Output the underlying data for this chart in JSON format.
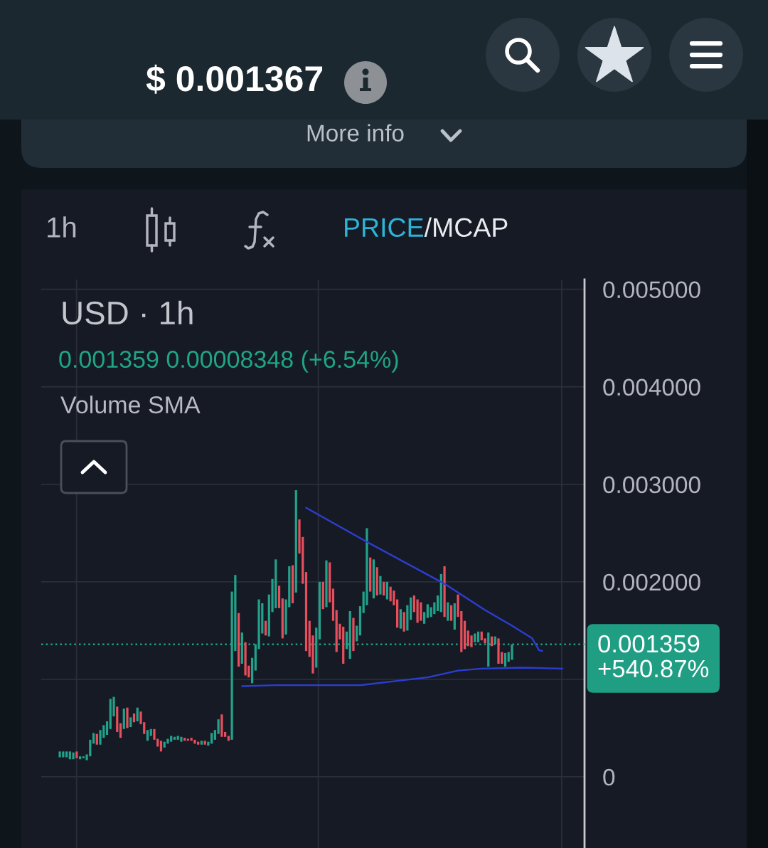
{
  "chart_data": {
    "type": "candlestick",
    "title": "USD · 1h",
    "annotations": [
      "$ 0.001367",
      "More info",
      "1h",
      "PRICE",
      "/MCAP",
      "0.001359 0.00008348 (+6.54%)",
      "Volume SMA"
    ],
    "categories": [
      null,
      null,
      null,
      null,
      null,
      null,
      null,
      null,
      null,
      null,
      null,
      null,
      null,
      null,
      null,
      null,
      null,
      null,
      null,
      null,
      null,
      null,
      null,
      null,
      null,
      null,
      null,
      null,
      null,
      null,
      null,
      null,
      null,
      null,
      null,
      null,
      null,
      null,
      null,
      null,
      null,
      null,
      null,
      null,
      null,
      null,
      null,
      null,
      null,
      null,
      null,
      null,
      null,
      null,
      null,
      null,
      null,
      null,
      null,
      null,
      null,
      null,
      null,
      null,
      null,
      null,
      null,
      null,
      null,
      null,
      null,
      null,
      null,
      null,
      null,
      null,
      null,
      null,
      null,
      null,
      null,
      null,
      null,
      null,
      null,
      null,
      null,
      null,
      null,
      null,
      null,
      null,
      null,
      null,
      null,
      null,
      null,
      null,
      null,
      null,
      null,
      null,
      null,
      null,
      null,
      null,
      null,
      null,
      null,
      null,
      null,
      null,
      null,
      null,
      null,
      null,
      null,
      null,
      null,
      null,
      null,
      null,
      null,
      null,
      null,
      null,
      null,
      null,
      null,
      null,
      null,
      null,
      null,
      null,
      null,
      null,
      null,
      null,
      null,
      null,
      null,
      null,
      null,
      null,
      null,
      null,
      null,
      null,
      null,
      null,
      null,
      null,
      null,
      null,
      null,
      null,
      null,
      null,
      null,
      null,
      null
    ],
    "ohlc": [
      null,
      null,
      null,
      null,
      null,
      [
        0.0002,
        0.00026,
        0.0002,
        0.00026
      ],
      [
        0.0002,
        0.00026,
        0.0002,
        0.00026
      ],
      [
        0.0002,
        0.00026,
        0.0002,
        0.00026
      ],
      [
        0.00018,
        0.00026,
        0.00018,
        0.00026
      ],
      [
        0.00018,
        0.00025,
        0.00018,
        0.00025
      ],
      [
        0.00026,
        0.00026,
        0.00019,
        0.00019
      ],
      [
        0.00018,
        0.00021,
        0.00018,
        0.00021
      ],
      [
        0.00019,
        0.00021,
        0.00019,
        0.00021
      ],
      [
        0.00017,
        0.00023,
        0.00017,
        0.00023
      ],
      [
        0.00021,
        0.00038,
        0.00021,
        0.00038
      ],
      [
        0.00034,
        0.00045,
        0.00034,
        0.00045
      ],
      [
        0.00044,
        0.00044,
        0.00033,
        0.00033
      ],
      [
        0.00033,
        0.00048,
        0.00033,
        0.00048
      ],
      [
        0.0004,
        0.00053,
        0.0004,
        0.00053
      ],
      [
        0.00043,
        0.00057,
        0.00043,
        0.00057
      ],
      [
        0.00049,
        0.0008,
        0.00049,
        0.0008
      ],
      [
        0.00062,
        0.00082,
        0.00062,
        0.00082
      ],
      [
        0.00072,
        0.00072,
        0.00046,
        0.00046
      ],
      [
        0.00055,
        0.00055,
        0.0004,
        0.0004
      ],
      [
        0.00049,
        0.0007,
        0.00049,
        0.0007
      ],
      [
        0.00071,
        0.00071,
        0.0005,
        0.0005
      ],
      [
        0.00051,
        0.00061,
        0.00051,
        0.00061
      ],
      [
        0.00065,
        0.00065,
        0.00056,
        0.00056
      ],
      [
        0.00057,
        0.00071,
        0.00057,
        0.00071
      ],
      [
        0.00067,
        0.00067,
        0.00054,
        0.00054
      ],
      [
        0.00056,
        0.00056,
        0.00044,
        0.00044
      ],
      [
        0.00037,
        0.00048,
        0.00037,
        0.00048
      ],
      [
        0.00042,
        0.00049,
        0.00042,
        0.00049
      ],
      [
        0.00049,
        0.00049,
        0.00038,
        0.00038
      ],
      [
        0.00039,
        0.00039,
        0.00031,
        0.00031
      ],
      [
        0.00037,
        0.00037,
        0.00026,
        0.00026
      ],
      [
        0.0003,
        0.00036,
        0.0003,
        0.00036
      ],
      [
        0.00034,
        0.00039,
        0.00034,
        0.00039
      ],
      [
        0.00036,
        0.00042,
        0.00036,
        0.00042
      ],
      [
        0.00038,
        0.00041,
        0.00038,
        0.00041
      ],
      [
        0.00038,
        0.00042,
        0.00038,
        0.00042
      ],
      [
        0.00036,
        0.00041,
        0.00036,
        0.00041
      ],
      [
        0.0004,
        0.0004,
        0.00037,
        0.00037
      ],
      [
        0.00039,
        0.00039,
        0.00037,
        0.00037
      ],
      [
        0.0004,
        0.0004,
        0.00037,
        0.00037
      ],
      [
        0.00038,
        0.00038,
        0.00034,
        0.00034
      ],
      [
        0.00036,
        0.00036,
        0.00033,
        0.00033
      ],
      [
        0.00033,
        0.00037,
        0.00033,
        0.00037
      ],
      [
        0.00037,
        0.00037,
        0.00033,
        0.00033
      ],
      [
        0.00032,
        0.00036,
        0.00032,
        0.00036
      ],
      [
        0.00034,
        0.00045,
        0.00034,
        0.00045
      ],
      [
        0.00038,
        0.00048,
        0.00038,
        0.00048
      ],
      [
        0.00044,
        0.00059,
        0.00044,
        0.00059
      ],
      [
        0.00064,
        0.00064,
        0.00041,
        0.00041
      ],
      [
        0.00046,
        0.00046,
        0.00041,
        0.00041
      ],
      [
        0.00042,
        0.00042,
        0.00037,
        0.00037
      ],
      [
        0.00038,
        0.0019,
        0.00038,
        0.0019
      ],
      [
        0.00129,
        0.00207,
        0.00129,
        0.00207
      ],
      [
        0.00168,
        0.00168,
        0.00113,
        0.00113
      ],
      [
        0.00116,
        0.00148,
        0.00116,
        0.00148
      ],
      [
        0.00138,
        0.00138,
        0.00104,
        0.00104
      ],
      [
        0.00114,
        0.00114,
        0.00102,
        0.00102
      ],
      [
        0.00096,
        0.00122,
        0.00096,
        0.00122
      ],
      [
        0.00109,
        0.00136,
        0.00109,
        0.00136
      ],
      [
        0.00131,
        0.00182,
        0.00131,
        0.00182
      ],
      [
        0.00147,
        0.00178,
        0.00147,
        0.00178
      ],
      [
        0.0016,
        0.0016,
        0.00145,
        0.00145
      ],
      [
        0.00144,
        0.00187,
        0.00144,
        0.00187
      ],
      [
        0.00169,
        0.00203,
        0.00169,
        0.00203
      ],
      [
        0.00173,
        0.00223,
        0.00173,
        0.00223
      ],
      [
        0.00196,
        0.00196,
        0.00173,
        0.00173
      ],
      [
        0.00183,
        0.00183,
        0.00142,
        0.00142
      ],
      [
        0.00146,
        0.00182,
        0.00146,
        0.00182
      ],
      [
        0.00174,
        0.00216,
        0.00174,
        0.00216
      ],
      [
        0.00217,
        0.00217,
        0.00178,
        0.00178
      ],
      [
        0.00189,
        0.00294,
        0.00189,
        0.00294
      ],
      [
        0.00264,
        0.00264,
        0.00229,
        0.00229
      ],
      [
        0.00246,
        0.00246,
        0.00198,
        0.00198
      ],
      [
        0.0021,
        0.0021,
        0.00129,
        0.00129
      ],
      [
        0.0016,
        0.0016,
        0.00123,
        0.00123
      ],
      [
        0.00145,
        0.00145,
        0.00106,
        0.00106
      ],
      [
        0.00112,
        0.00153,
        0.00112,
        0.00153
      ],
      [
        0.00141,
        0.002,
        0.00141,
        0.002
      ],
      [
        0.002,
        0.002,
        0.00172,
        0.00172
      ],
      [
        0.00174,
        0.00222,
        0.00174,
        0.00222
      ],
      [
        0.0022,
        0.0022,
        0.00179,
        0.00179
      ],
      [
        0.00193,
        0.00193,
        0.0016,
        0.0016
      ],
      [
        0.00171,
        0.00171,
        0.00128,
        0.00128
      ],
      [
        0.00157,
        0.00157,
        0.00141,
        0.00141
      ],
      [
        0.00154,
        0.00154,
        0.00116,
        0.00116
      ],
      [
        0.00131,
        0.00149,
        0.00131,
        0.00149
      ],
      [
        0.00121,
        0.0017,
        0.00121,
        0.0017
      ],
      [
        0.00163,
        0.00163,
        0.00129,
        0.00129
      ],
      [
        0.00139,
        0.00155,
        0.00139,
        0.00155
      ],
      [
        0.00145,
        0.00175,
        0.00145,
        0.00175
      ],
      [
        0.00168,
        0.0019,
        0.00168,
        0.0019
      ],
      [
        0.00176,
        0.00255,
        0.00176,
        0.00255
      ],
      [
        0.00225,
        0.00225,
        0.0019,
        0.0019
      ],
      [
        0.00183,
        0.00223,
        0.00183,
        0.00223
      ],
      [
        0.00215,
        0.00215,
        0.00186,
        0.00186
      ],
      [
        0.00187,
        0.00206,
        0.00187,
        0.00206
      ],
      [
        0.002,
        0.002,
        0.00186,
        0.00186
      ],
      [
        0.00182,
        0.002,
        0.00182,
        0.002
      ],
      [
        0.00195,
        0.00195,
        0.0018,
        0.0018
      ],
      [
        0.00191,
        0.00191,
        0.00176,
        0.00176
      ],
      [
        0.00182,
        0.00182,
        0.00153,
        0.00153
      ],
      [
        0.00152,
        0.00172,
        0.00152,
        0.00172
      ],
      [
        0.00169,
        0.00169,
        0.00149,
        0.00149
      ],
      [
        0.0015,
        0.00176,
        0.0015,
        0.00176
      ],
      [
        0.00161,
        0.00184,
        0.00161,
        0.00184
      ],
      [
        0.00186,
        0.00186,
        0.00169,
        0.00169
      ],
      [
        0.00182,
        0.00182,
        0.00158,
        0.00158
      ],
      [
        0.00179,
        0.00179,
        0.0016,
        0.0016
      ],
      [
        0.00157,
        0.00169,
        0.00157,
        0.00169
      ],
      [
        0.00163,
        0.00177,
        0.00163,
        0.00177
      ],
      [
        0.00164,
        0.00174,
        0.00164,
        0.00174
      ],
      [
        0.00167,
        0.00179,
        0.00167,
        0.00179
      ],
      [
        0.0017,
        0.00186,
        0.0017,
        0.00186
      ],
      [
        0.00169,
        0.00208,
        0.00169,
        0.00208
      ],
      [
        0.00216,
        0.00216,
        0.00164,
        0.00164
      ],
      [
        0.0016,
        0.00179,
        0.0016,
        0.00179
      ],
      [
        0.00176,
        0.00176,
        0.0016,
        0.0016
      ],
      [
        0.00151,
        0.00178,
        0.00151,
        0.00178
      ],
      [
        0.00187,
        0.00187,
        0.00164,
        0.00164
      ],
      [
        0.0017,
        0.0017,
        0.00128,
        0.00128
      ],
      [
        0.0016,
        0.0016,
        0.00131,
        0.00131
      ],
      [
        0.0015,
        0.0015,
        0.00134,
        0.00134
      ],
      [
        0.00145,
        0.00145,
        0.00133,
        0.00133
      ],
      [
        0.00138,
        0.00147,
        0.00138,
        0.00147
      ],
      [
        0.00138,
        0.00149,
        0.00138,
        0.00149
      ],
      [
        0.00149,
        0.00149,
        0.0014,
        0.0014
      ],
      [
        0.00142,
        0.00142,
        0.00137,
        0.00137
      ],
      [
        0.00113,
        0.00148,
        0.00113,
        0.00148
      ],
      [
        0.00144,
        0.00144,
        0.00134,
        0.00134
      ],
      [
        0.00136,
        0.00144,
        0.00136,
        0.00144
      ],
      [
        0.00142,
        0.00142,
        0.00116,
        0.00116
      ],
      [
        0.00128,
        0.00128,
        0.00116,
        0.00116
      ],
      [
        0.00113,
        0.00127,
        0.00113,
        0.00127
      ],
      [
        0.00118,
        0.00128,
        0.00118,
        0.00128
      ],
      [
        0.0012,
        0.001359,
        0.0012,
        0.001359
      ],
      null,
      null,
      null,
      null,
      null,
      null,
      null,
      null,
      null,
      null,
      null,
      null,
      null,
      null,
      null,
      null,
      null,
      null,
      null,
      null,
      null
    ],
    "series": [
      {
        "type": "line",
        "color": "#2c3ed1",
        "values": [
          null,
          null,
          null,
          null,
          null,
          null,
          null,
          null,
          null,
          null,
          null,
          null,
          null,
          null,
          null,
          null,
          null,
          null,
          null,
          null,
          null,
          null,
          null,
          null,
          null,
          null,
          null,
          null,
          null,
          null,
          null,
          null,
          null,
          null,
          null,
          null,
          null,
          null,
          null,
          null,
          null,
          null,
          null,
          null,
          null,
          null,
          null,
          null,
          null,
          null,
          null,
          null,
          null,
          null,
          null,
          null,
          null,
          null,
          null,
          null,
          null,
          null,
          null,
          null,
          null,
          null,
          null,
          null,
          null,
          null,
          null,
          null,
          null,
          null,
          null,
          null,
          null,
          null,
          0.00276,
          null,
          null,
          null,
          null,
          null,
          null,
          null,
          null,
          null,
          null,
          null,
          null,
          null,
          null,
          null,
          null,
          null,
          0.00241,
          null,
          null,
          null,
          null,
          null,
          null,
          null,
          null,
          null,
          null,
          null,
          null,
          null,
          null,
          null,
          null,
          null,
          null,
          null,
          null,
          null,
          null,
          0.00198,
          null,
          null,
          null,
          null,
          null,
          null,
          null,
          null,
          null,
          null,
          null,
          0.00171,
          null,
          null,
          null,
          null,
          null,
          null,
          null,
          0.00155,
          null,
          null,
          null,
          null,
          null,
          0.00142,
          null,
          0.0013,
          0.00129,
          null,
          null,
          null,
          null,
          null,
          null,
          null,
          null,
          null,
          null,
          null,
          null
        ]
      },
      {
        "type": "line",
        "color": "#2c3ed1",
        "values": [
          null,
          null,
          null,
          null,
          null,
          null,
          null,
          null,
          null,
          null,
          null,
          null,
          null,
          null,
          null,
          null,
          null,
          null,
          null,
          null,
          null,
          null,
          null,
          null,
          null,
          null,
          null,
          null,
          null,
          null,
          null,
          null,
          null,
          null,
          null,
          null,
          null,
          null,
          null,
          null,
          null,
          null,
          null,
          null,
          null,
          null,
          null,
          null,
          null,
          null,
          null,
          null,
          null,
          null,
          null,
          null,
          null,
          null,
          null,
          0.00093,
          null,
          null,
          null,
          null,
          null,
          null,
          null,
          null,
          null,
          0.00094,
          null,
          null,
          null,
          null,
          null,
          null,
          null,
          null,
          null,
          null,
          null,
          null,
          null,
          0.00094,
          null,
          null,
          null,
          null,
          null,
          null,
          null,
          null,
          null,
          null,
          0.00094,
          null,
          null,
          null,
          null,
          null,
          null,
          null,
          null,
          null,
          0.00098,
          null,
          null,
          null,
          null,
          null,
          null,
          null,
          null,
          null,
          0.00102,
          null,
          null,
          null,
          null,
          null,
          null,
          null,
          null,
          0.00109,
          null,
          null,
          null,
          null,
          null,
          null,
          0.00111,
          null,
          null,
          null,
          null,
          null,
          null,
          null,
          null,
          null,
          null,
          null,
          0.00112,
          null,
          null,
          null,
          null,
          null,
          null,
          null,
          null,
          null,
          null,
          null,
          0.00111,
          null,
          null,
          null,
          null,
          null,
          null
        ]
      }
    ],
    "ylim": [
      -0.00073,
      0.0051
    ],
    "yticks": [
      0,
      {
        "value": 0.001,
        "label": null
      },
      {
        "value": 0.002,
        "label": "0.002000"
      },
      {
        "value": 0.003,
        "label": "0.003000"
      },
      {
        "value": 0.004,
        "label": "0.004000"
      },
      {
        "value": 0.005,
        "label": "0.005000"
      }
    ],
    "ref_lines": [
      {
        "axis": "y",
        "value": 0.001359,
        "label": "0.001359\n+540.87%",
        "color": "#1f9e84",
        "line_style": "dotted"
      }
    ],
    "grid": true,
    "tick_labels": "y"
  }
}
